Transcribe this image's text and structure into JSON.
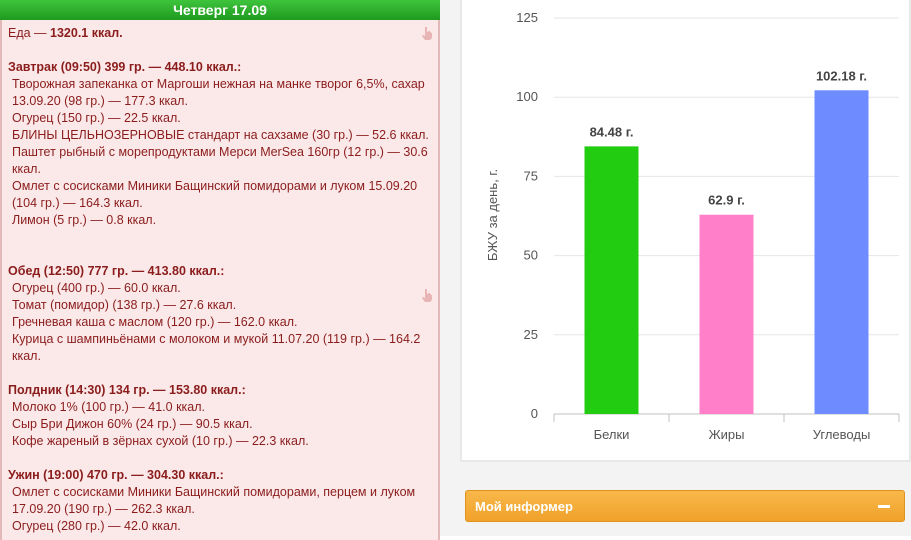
{
  "day": {
    "title": "Четверг 17.09"
  },
  "food_total": {
    "label": "Еда — ",
    "value": "1320.1 ккал."
  },
  "meals": [
    {
      "title": "Завтрак (09:50) 399 гр. — 448.10 ккал.:",
      "items": [
        "Творожная запеканка от Маргоши нежная на манке творог 6,5%, сахар 13.09.20 (98 гр.) — 177.3 ккал.",
        "Огурец (150 гр.) — 22.5 ккал.",
        "БЛИНЫ ЦЕЛЬНОЗЕРНОВЫЕ стандарт на сахзаме (30 гр.) — 52.6 ккал.",
        "Паштет рыбный с морепродуктами Мерси MerSea 160гр (12 гр.) — 30.6 ккал.",
        "Омлет с сосисками Миники Бащинский помидорами и луком 15.09.20 (104 гр.) — 164.3 ккал.",
        "Лимон (5 гр.) — 0.8 ккал."
      ]
    },
    {
      "title": "Обед (12:50) 777 гр. — 413.80 ккал.:",
      "items": [
        "Огурец (400 гр.) — 60.0 ккал.",
        "Томат (помидор) (138 гр.) — 27.6 ккал.",
        "Гречневая каша с маслом (120 гр.) — 162.0 ккал.",
        "Курица с шампиньёнами с молоком и мукой 11.07.20 (119 гр.) — 164.2 ккал."
      ]
    },
    {
      "title": "Полдник (14:30) 134 гр. — 153.80 ккал.:",
      "items": [
        "Молоко 1% (100 гр.) — 41.0 ккал.",
        "Сыр Бри Дижон 60% (24 гр.) — 90.5 ккал.",
        "Кофе жареный в зёрнах сухой (10 гр.) — 22.3 ккал."
      ]
    },
    {
      "title": "Ужин (19:00) 470 гр. — 304.30 ккал.:",
      "items": [
        "Омлет с сосисками Миники Бащинский помидорами, перцем и луком 17.09.20 (190 гр.) — 262.3 ккал.",
        "Огурец (280 гр.) — 42.0 ккал."
      ]
    }
  ],
  "chart_data": {
    "type": "bar",
    "categories": [
      "Белки",
      "Жиры",
      "Углеводы"
    ],
    "values": [
      84.48,
      62.9,
      102.18
    ],
    "data_labels": [
      "84.48 г.",
      "62.9 г.",
      "102.18 г."
    ],
    "colors": [
      "#22cc11",
      "#ff7fc8",
      "#6e8bff"
    ],
    "ylabel": "БЖУ за день, г.",
    "yticks": [
      0,
      25,
      50,
      75,
      100,
      125
    ],
    "ylim": [
      0,
      125
    ],
    "grid": true
  },
  "informer": {
    "title": "Мой информер",
    "toggle": "collapse"
  }
}
